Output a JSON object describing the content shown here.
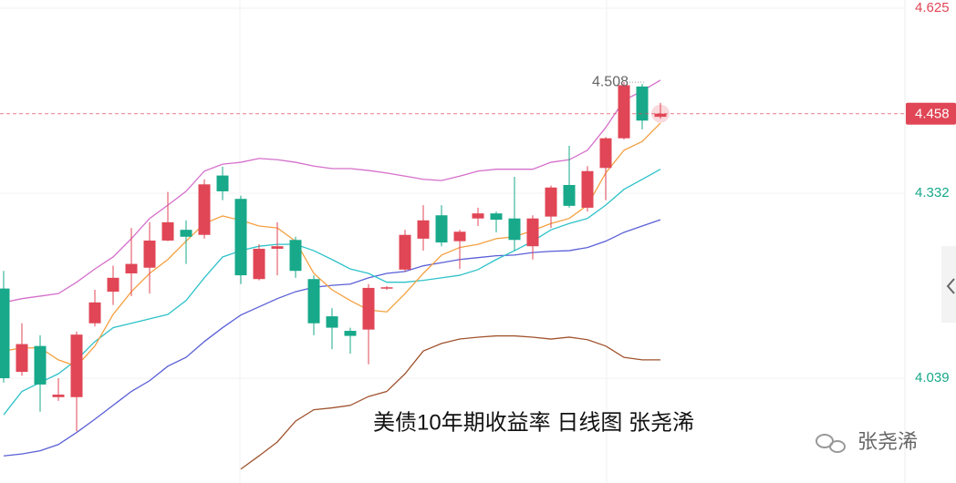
{
  "chart_data": {
    "type": "candlestick",
    "title": "美债10年期收益率 日线图  张尧浠",
    "watermark": "张尧浠",
    "ylim": [
      3.873,
      4.638
    ],
    "yticks": [
      4.625,
      4.332,
      4.039
    ],
    "grid": true,
    "up_color": "#e04656",
    "down_color": "#17a98a",
    "last": 4.458,
    "max_label": 4.508,
    "candles": {
      "open": [
        4.181,
        4.049,
        4.09,
        4.009,
        4.009,
        4.126,
        4.176,
        4.205,
        4.214,
        4.257,
        4.274,
        4.266,
        4.36,
        4.323,
        4.196,
        4.244,
        4.258,
        4.196,
        4.137,
        4.114,
        4.116,
        4.182,
        4.211,
        4.26,
        4.297,
        4.256,
        4.292,
        4.3,
        4.292,
        4.248,
        4.295,
        4.345,
        4.309,
        4.372,
        4.419,
        4.501,
        4.453
      ],
      "high": [
        4.209,
        4.126,
        4.107,
        4.039,
        4.113,
        4.179,
        4.217,
        4.277,
        4.286,
        4.334,
        4.289,
        4.354,
        4.374,
        4.328,
        4.251,
        4.286,
        4.263,
        4.202,
        4.15,
        4.119,
        4.188,
        4.185,
        4.274,
        4.313,
        4.313,
        4.274,
        4.309,
        4.303,
        4.358,
        4.297,
        4.344,
        4.407,
        4.375,
        4.421,
        4.508,
        4.505,
        4.475
      ],
      "low": [
        4.032,
        4.043,
        3.986,
        4.003,
        3.955,
        4.121,
        4.155,
        4.169,
        4.173,
        4.256,
        4.22,
        4.26,
        4.321,
        4.188,
        4.194,
        4.202,
        4.198,
        4.107,
        4.085,
        4.078,
        4.061,
        4.179,
        4.208,
        4.241,
        4.248,
        4.212,
        4.28,
        4.27,
        4.241,
        4.227,
        4.277,
        4.309,
        4.303,
        4.321,
        4.417,
        4.433,
        4.45
      ],
      "close": [
        4.039,
        4.093,
        4.029,
        4.013,
        4.108,
        4.159,
        4.198,
        4.22,
        4.257,
        4.286,
        4.263,
        4.346,
        4.335,
        4.202,
        4.244,
        4.248,
        4.209,
        4.126,
        4.119,
        4.106,
        4.182,
        4.183,
        4.266,
        4.289,
        4.254,
        4.271,
        4.3,
        4.29,
        4.258,
        4.292,
        4.341,
        4.312,
        4.367,
        4.419,
        4.503,
        4.447,
        4.458
      ]
    },
    "series": [
      {
        "color": "#d56fcb",
        "values": [
          4.159,
          4.165,
          4.169,
          4.173,
          4.191,
          4.212,
          4.231,
          4.26,
          4.292,
          4.313,
          4.335,
          4.367,
          4.378,
          4.381,
          4.387,
          4.385,
          4.381,
          4.375,
          4.371,
          4.371,
          4.368,
          4.364,
          4.359,
          4.354,
          4.352,
          4.359,
          4.367,
          4.37,
          4.37,
          4.37,
          4.381,
          4.385,
          4.4,
          4.436,
          4.479,
          4.494,
          4.511
        ]
      },
      {
        "color": "#a0532e",
        "values": [
          null,
          null,
          null,
          null,
          null,
          null,
          null,
          null,
          null,
          null,
          null,
          null,
          null,
          3.895,
          3.916,
          3.938,
          3.971,
          3.989,
          3.992,
          3.996,
          4.01,
          4.018,
          4.046,
          4.082,
          4.094,
          4.101,
          4.104,
          4.106,
          4.106,
          4.104,
          4.101,
          4.104,
          4.1,
          4.09,
          4.072,
          4.068,
          4.068
        ]
      },
      {
        "color": "#5a5fd6",
        "values": [
          3.916,
          3.919,
          3.924,
          3.934,
          3.953,
          3.974,
          3.996,
          4.018,
          4.035,
          4.058,
          4.072,
          4.097,
          4.119,
          4.139,
          4.152,
          4.165,
          4.176,
          4.183,
          4.186,
          4.188,
          4.198,
          4.205,
          4.208,
          4.217,
          4.222,
          4.227,
          4.23,
          4.233,
          4.234,
          4.238,
          4.24,
          4.241,
          4.246,
          4.256,
          4.27,
          4.28,
          4.29
        ]
      },
      {
        "color": "#2ec2c9",
        "values": [
          3.981,
          4.018,
          4.032,
          4.046,
          4.068,
          4.097,
          4.119,
          4.126,
          4.133,
          4.14,
          4.162,
          4.198,
          4.231,
          4.241,
          4.248,
          4.251,
          4.251,
          4.241,
          4.227,
          4.212,
          4.205,
          4.191,
          4.191,
          4.194,
          4.198,
          4.202,
          4.211,
          4.227,
          4.241,
          4.256,
          4.274,
          4.284,
          4.292,
          4.313,
          4.338,
          4.354,
          4.37
        ]
      },
      {
        "color": "#f4a040",
        "values": [
          4.082,
          4.087,
          4.087,
          4.068,
          4.058,
          4.09,
          4.14,
          4.176,
          4.205,
          4.227,
          4.256,
          4.284,
          4.296,
          4.289,
          4.28,
          4.277,
          4.256,
          4.205,
          4.179,
          4.162,
          4.147,
          4.144,
          4.173,
          4.205,
          4.234,
          4.246,
          4.251,
          4.26,
          4.263,
          4.273,
          4.284,
          4.292,
          4.313,
          4.364,
          4.4,
          4.414,
          4.443
        ]
      }
    ]
  }
}
